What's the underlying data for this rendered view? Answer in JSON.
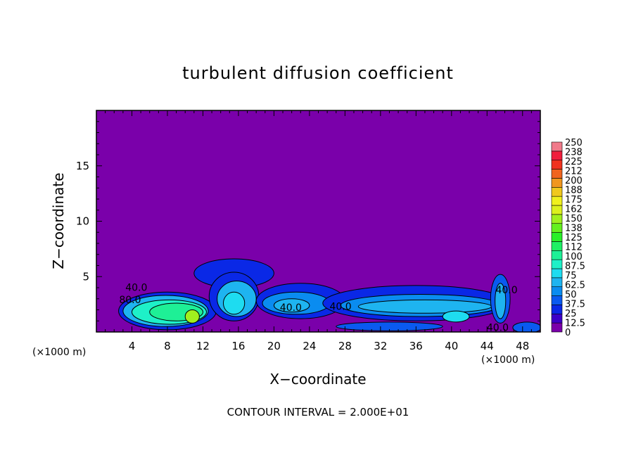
{
  "chart_data": {
    "type": "heatmap",
    "title": "turbulent diffusion coefficient",
    "xlabel": "X−coordinate",
    "ylabel": "Z−coordinate",
    "x_unit_left": "(×1000 m)",
    "x_unit_right": "(×1000 m)",
    "footer": "CONTOUR INTERVAL = 2.000E+01",
    "xlim": [
      0,
      50
    ],
    "ylim": [
      0,
      20
    ],
    "x_ticks": [
      4,
      8,
      12,
      16,
      20,
      24,
      28,
      32,
      36,
      40,
      44,
      48
    ],
    "x_tick_labels": [
      "4",
      "8",
      "12",
      "16",
      "20",
      "24",
      "28",
      "32",
      "36",
      "40",
      "44",
      "48"
    ],
    "y_ticks": [
      5,
      10,
      15
    ],
    "y_tick_labels": [
      "5",
      "10",
      "15"
    ],
    "colorbar": {
      "levels": [
        0,
        12.5,
        25,
        37.5,
        50,
        62.5,
        75,
        87.5,
        100,
        112,
        125,
        138,
        150,
        162,
        175,
        188,
        200,
        212,
        225,
        238,
        250
      ],
      "labels": [
        "0",
        "12.5",
        "25",
        "37.5",
        "50",
        "62.5",
        "75",
        "87.5",
        "100",
        "112",
        "125",
        "138",
        "150",
        "162",
        "175",
        "188",
        "200",
        "212",
        "225",
        "238",
        "250"
      ],
      "colors": [
        "#7a00aa",
        "#3c00c8",
        "#0a28e6",
        "#0a5af0",
        "#0a8cf0",
        "#1eb4f0",
        "#1edcf0",
        "#1ef0c8",
        "#1ef096",
        "#1ef064",
        "#28f028",
        "#64f01e",
        "#a0f01e",
        "#dcf01e",
        "#f0f01e",
        "#f0c81e",
        "#f0961e",
        "#f0641e",
        "#f0321e",
        "#f01e3c",
        "#f07a8a"
      ]
    },
    "contour_labels": [
      {
        "text": "40.0",
        "x": 4.5,
        "z": 3.7
      },
      {
        "text": "80.0",
        "x": 3.8,
        "z": 2.6
      },
      {
        "text": "40.0",
        "x": 21.9,
        "z": 1.9
      },
      {
        "text": "40.0",
        "x": 27.5,
        "z": 2.0
      },
      {
        "text": "40.0",
        "x": 46.2,
        "z": 3.5
      },
      {
        "text": "40.0",
        "x": 45.2,
        "z": 0.1
      }
    ],
    "regions": [
      {
        "cx": 8.0,
        "cz": 1.9,
        "rx": 5.5,
        "rz": 1.7,
        "level": 2
      },
      {
        "cx": 7.8,
        "cz": 1.9,
        "rx": 4.8,
        "rz": 1.4,
        "level": 5
      },
      {
        "cx": 8.2,
        "cz": 1.8,
        "rx": 4.2,
        "rz": 1.1,
        "level": 7
      },
      {
        "cx": 9.0,
        "cz": 1.8,
        "rx": 3.0,
        "rz": 0.8,
        "level": 8
      },
      {
        "cx": 10.8,
        "cz": 1.4,
        "rx": 0.8,
        "rz": 0.6,
        "level": 12
      },
      {
        "cx": 15.5,
        "cz": 5.3,
        "rx": 4.5,
        "rz": 1.3,
        "level": 2
      },
      {
        "cx": 15.5,
        "cz": 3.2,
        "rx": 2.8,
        "rz": 2.2,
        "level": 2
      },
      {
        "cx": 15.8,
        "cz": 3.0,
        "rx": 2.2,
        "rz": 1.6,
        "level": 5
      },
      {
        "cx": 15.5,
        "cz": 2.6,
        "rx": 1.2,
        "rz": 1.0,
        "level": 6
      },
      {
        "cx": 23.0,
        "cz": 2.8,
        "rx": 5.0,
        "rz": 1.6,
        "level": 2
      },
      {
        "cx": 22.5,
        "cz": 2.6,
        "rx": 3.8,
        "rz": 1.0,
        "level": 4
      },
      {
        "cx": 22.0,
        "cz": 2.4,
        "rx": 2.0,
        "rz": 0.6,
        "level": 5
      },
      {
        "cx": 36.0,
        "cz": 2.6,
        "rx": 10.5,
        "rz": 1.6,
        "level": 2
      },
      {
        "cx": 36.5,
        "cz": 2.4,
        "rx": 9.0,
        "rz": 1.0,
        "level": 4
      },
      {
        "cx": 37.0,
        "cz": 2.3,
        "rx": 7.5,
        "rz": 0.6,
        "level": 5
      },
      {
        "cx": 40.5,
        "cz": 1.4,
        "rx": 1.5,
        "rz": 0.5,
        "level": 6
      },
      {
        "cx": 45.5,
        "cz": 3.0,
        "rx": 1.1,
        "rz": 2.2,
        "level": 3
      },
      {
        "cx": 45.5,
        "cz": 2.8,
        "rx": 0.6,
        "rz": 1.6,
        "level": 5
      },
      {
        "cx": 33.0,
        "cz": 0.5,
        "rx": 6.0,
        "rz": 0.4,
        "level": 3
      },
      {
        "cx": 48.5,
        "cz": 0.4,
        "rx": 1.6,
        "rz": 0.5,
        "level": 3
      }
    ]
  }
}
